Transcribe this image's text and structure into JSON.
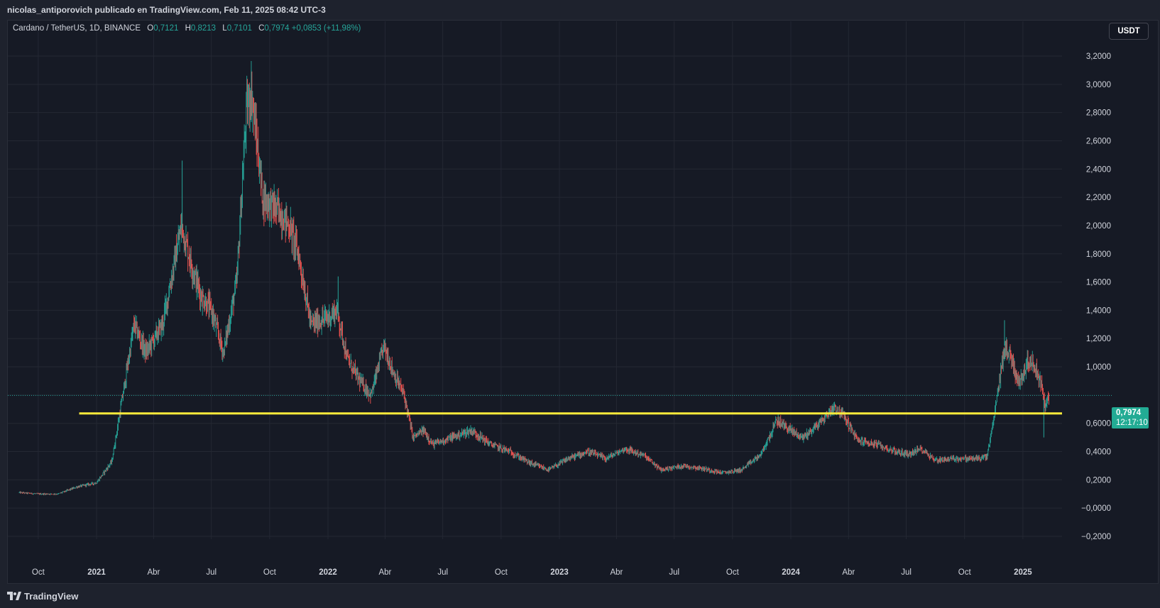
{
  "header": {
    "attribution": "nicolas_antiporovich publicado en TradingView.com, Feb 11, 2025 08:42 UTC-3"
  },
  "legend": {
    "symbol": "Cardano / TetherUS, 1D, BINANCE",
    "open_label": "O",
    "open": "0,7121",
    "high_label": "H",
    "high": "0,8213",
    "low_label": "L",
    "low": "0,7101",
    "close_label": "C",
    "close": "0,7974",
    "change": "+0,0853 (+11,98%)"
  },
  "currency_button": "USDT",
  "price_tag": {
    "price": "0,7974",
    "countdown": "12:17:10"
  },
  "footer": {
    "brand": "TradingView"
  },
  "colors": {
    "background": "#161a25",
    "up": "#26a69a",
    "down": "#ef5350",
    "support_line": "#ffeb3b",
    "grid": "#242833"
  },
  "chart_data": {
    "type": "candlestick",
    "title": "",
    "series": [
      {
        "name": "Cardano / TetherUS, 1D, BINANCE",
        "approx_close_path": [
          [
            "2020-09-01",
            0.11
          ],
          [
            "2020-10-01",
            0.1
          ],
          [
            "2020-11-01",
            0.1
          ],
          [
            "2020-12-01",
            0.15
          ],
          [
            "2021-01-01",
            0.18
          ],
          [
            "2021-01-25",
            0.33
          ],
          [
            "2021-02-15",
            0.9
          ],
          [
            "2021-03-01",
            1.3
          ],
          [
            "2021-03-20",
            1.1
          ],
          [
            "2021-04-15",
            1.3
          ],
          [
            "2021-05-15",
            2.0
          ],
          [
            "2021-06-01",
            1.7
          ],
          [
            "2021-06-15",
            1.5
          ],
          [
            "2021-07-01",
            1.4
          ],
          [
            "2021-07-20",
            1.1
          ],
          [
            "2021-08-10",
            1.6
          ],
          [
            "2021-08-25",
            2.8
          ],
          [
            "2021-09-02",
            2.95
          ],
          [
            "2021-09-20",
            2.2
          ],
          [
            "2021-10-15",
            2.1
          ],
          [
            "2021-11-01",
            2.0
          ],
          [
            "2021-11-15",
            1.8
          ],
          [
            "2021-12-05",
            1.3
          ],
          [
            "2022-01-01",
            1.35
          ],
          [
            "2022-01-15",
            1.4
          ],
          [
            "2022-02-01",
            1.05
          ],
          [
            "2022-02-20",
            0.9
          ],
          [
            "2022-03-10",
            0.8
          ],
          [
            "2022-03-30",
            1.15
          ],
          [
            "2022-04-15",
            0.95
          ],
          [
            "2022-05-01",
            0.8
          ],
          [
            "2022-05-15",
            0.5
          ],
          [
            "2022-06-01",
            0.55
          ],
          [
            "2022-06-15",
            0.45
          ],
          [
            "2022-07-15",
            0.5
          ],
          [
            "2022-08-15",
            0.55
          ],
          [
            "2022-09-15",
            0.45
          ],
          [
            "2022-10-15",
            0.4
          ],
          [
            "2022-11-15",
            0.32
          ],
          [
            "2022-12-15",
            0.27
          ],
          [
            "2023-01-15",
            0.35
          ],
          [
            "2023-02-15",
            0.4
          ],
          [
            "2023-03-15",
            0.35
          ],
          [
            "2023-04-15",
            0.42
          ],
          [
            "2023-05-15",
            0.37
          ],
          [
            "2023-06-10",
            0.27
          ],
          [
            "2023-07-15",
            0.3
          ],
          [
            "2023-08-15",
            0.28
          ],
          [
            "2023-09-15",
            0.25
          ],
          [
            "2023-10-15",
            0.27
          ],
          [
            "2023-11-15",
            0.38
          ],
          [
            "2023-12-10",
            0.62
          ],
          [
            "2024-01-01",
            0.55
          ],
          [
            "2024-01-20",
            0.5
          ],
          [
            "2024-02-15",
            0.6
          ],
          [
            "2024-03-10",
            0.72
          ],
          [
            "2024-03-25",
            0.65
          ],
          [
            "2024-04-15",
            0.48
          ],
          [
            "2024-05-15",
            0.45
          ],
          [
            "2024-06-15",
            0.4
          ],
          [
            "2024-07-05",
            0.38
          ],
          [
            "2024-07-25",
            0.42
          ],
          [
            "2024-08-15",
            0.34
          ],
          [
            "2024-09-15",
            0.35
          ],
          [
            "2024-10-15",
            0.35
          ],
          [
            "2024-11-05",
            0.36
          ],
          [
            "2024-11-15",
            0.6
          ],
          [
            "2024-11-25",
            0.9
          ],
          [
            "2024-12-03",
            1.15
          ],
          [
            "2024-12-15",
            1.05
          ],
          [
            "2024-12-25",
            0.88
          ],
          [
            "2025-01-10",
            1.05
          ],
          [
            "2025-01-20",
            1.0
          ],
          [
            "2025-02-01",
            0.85
          ],
          [
            "2025-02-05",
            0.7
          ],
          [
            "2025-02-11",
            0.7974
          ]
        ]
      }
    ],
    "notable_levels": {
      "high": 3.1,
      "low": 0.08
    },
    "support_line": {
      "value": 0.67,
      "x_start": "2020-11-01",
      "x_end": "2025-02-20"
    },
    "last_price": 0.7974,
    "x_axis": {
      "type": "time",
      "ticks": [
        {
          "label": "Oct",
          "date": "2020-10-01",
          "bold": false
        },
        {
          "label": "2021",
          "date": "2021-01-01",
          "bold": true
        },
        {
          "label": "Abr",
          "date": "2021-04-01",
          "bold": false
        },
        {
          "label": "Jul",
          "date": "2021-07-01",
          "bold": false
        },
        {
          "label": "Oct",
          "date": "2021-10-01",
          "bold": false
        },
        {
          "label": "2022",
          "date": "2022-01-01",
          "bold": true
        },
        {
          "label": "Abr",
          "date": "2022-04-01",
          "bold": false
        },
        {
          "label": "Jul",
          "date": "2022-07-01",
          "bold": false
        },
        {
          "label": "Oct",
          "date": "2022-10-01",
          "bold": false
        },
        {
          "label": "2023",
          "date": "2023-01-01",
          "bold": true
        },
        {
          "label": "Abr",
          "date": "2023-04-01",
          "bold": false
        },
        {
          "label": "Jul",
          "date": "2023-07-01",
          "bold": false
        },
        {
          "label": "Oct",
          "date": "2023-10-01",
          "bold": false
        },
        {
          "label": "2024",
          "date": "2024-01-01",
          "bold": true
        },
        {
          "label": "Abr",
          "date": "2024-04-01",
          "bold": false
        },
        {
          "label": "Jul",
          "date": "2024-07-01",
          "bold": false
        },
        {
          "label": "Oct",
          "date": "2024-10-01",
          "bold": false
        },
        {
          "label": "2025",
          "date": "2025-01-01",
          "bold": true
        }
      ],
      "range": [
        "2020-08-14",
        "2025-02-25"
      ]
    },
    "y_axis": {
      "range": [
        -0.25,
        3.3
      ],
      "ticks": [
        {
          "label": "3,2000",
          "value": 3.2
        },
        {
          "label": "3,0000",
          "value": 3.0
        },
        {
          "label": "2,8000",
          "value": 2.8
        },
        {
          "label": "2,6000",
          "value": 2.6
        },
        {
          "label": "2,4000",
          "value": 2.4
        },
        {
          "label": "2,2000",
          "value": 2.2
        },
        {
          "label": "2,0000",
          "value": 2.0
        },
        {
          "label": "1,8000",
          "value": 1.8
        },
        {
          "label": "1,6000",
          "value": 1.6
        },
        {
          "label": "1,4000",
          "value": 1.4
        },
        {
          "label": "1,2000",
          "value": 1.2
        },
        {
          "label": "1,0000",
          "value": 1.0
        },
        {
          "label": "0,6000",
          "value": 0.6
        },
        {
          "label": "0,4000",
          "value": 0.4
        },
        {
          "label": "0,2000",
          "value": 0.2
        },
        {
          "label": "−0,0000",
          "value": 0.0
        },
        {
          "label": "−0,2000",
          "value": -0.2
        }
      ]
    },
    "grid": true
  }
}
